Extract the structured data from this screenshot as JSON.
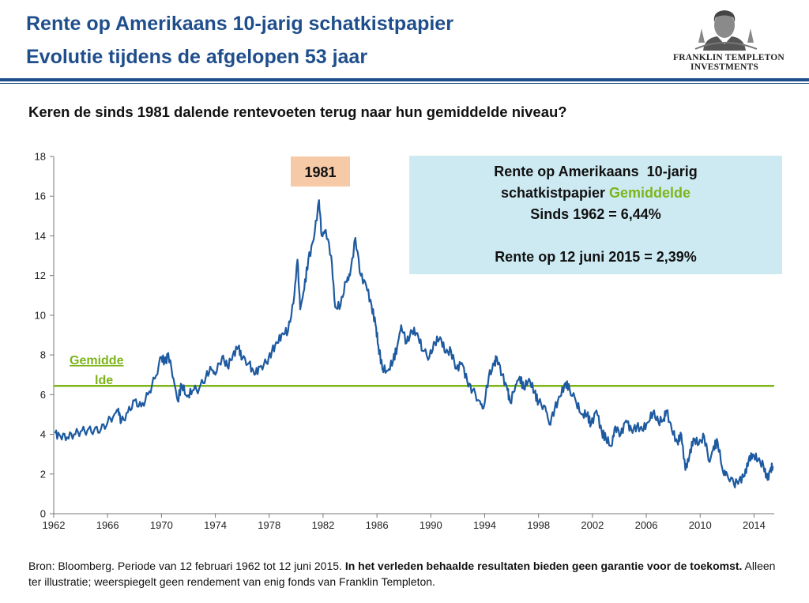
{
  "header": {
    "title_line1": "Rente op Amerikaans 10-jarig schatkistpapier",
    "title_line2": "Evolutie tijdens de afgelopen 53 jaar",
    "logo_line1": "FRANKLIN TEMPLETON",
    "logo_line2": "INVESTMENTS"
  },
  "subtitle": "Keren de sinds 1981 dalende rentevoeten terug naar hun gemiddelde niveau?",
  "colors": {
    "brand": "#1f4e8c",
    "series": "#1e5aa0",
    "average": "#7cb518",
    "infobox": "#cdeaf3",
    "label1981": "#f6c9a7"
  },
  "chart_data": {
    "type": "line",
    "xlim": [
      1962,
      2015.5
    ],
    "ylim": [
      0,
      18
    ],
    "x_ticks": [
      "1962",
      "1966",
      "1970",
      "1974",
      "1978",
      "1982",
      "1986",
      "1990",
      "1994",
      "1998",
      "2002",
      "2006",
      "2010",
      "2014"
    ],
    "y_ticks": [
      "0",
      "2",
      "4",
      "6",
      "8",
      "10",
      "12",
      "14",
      "16",
      "18"
    ],
    "average_value": 6.44,
    "average_label_line1": "Gemidde",
    "average_label_line2": "lde",
    "peak_label": "1981",
    "infobox": {
      "line1": "Rente op Amerikaans  10-jarig",
      "line2a": "schatkistpapier ",
      "line2b": "Gemiddelde",
      "line3": "Sinds 1962 = 6,44%",
      "line4": "Rente op 12 juni 2015 = 2,39%"
    },
    "series": [
      {
        "points": [
          [
            1962.1,
            4.05
          ],
          [
            1962.5,
            3.9
          ],
          [
            1963.0,
            3.85
          ],
          [
            1963.5,
            4.0
          ],
          [
            1964.0,
            4.15
          ],
          [
            1964.5,
            4.2
          ],
          [
            1965.0,
            4.2
          ],
          [
            1965.5,
            4.25
          ],
          [
            1966.0,
            4.6
          ],
          [
            1966.5,
            5.0
          ],
          [
            1966.8,
            5.3
          ],
          [
            1967.0,
            4.6
          ],
          [
            1967.5,
            5.1
          ],
          [
            1968.0,
            5.7
          ],
          [
            1968.5,
            5.4
          ],
          [
            1969.0,
            6.0
          ],
          [
            1969.5,
            6.8
          ],
          [
            1970.0,
            7.9
          ],
          [
            1970.3,
            7.6
          ],
          [
            1970.5,
            8.1
          ],
          [
            1970.9,
            6.8
          ],
          [
            1971.2,
            5.7
          ],
          [
            1971.5,
            6.5
          ],
          [
            1971.9,
            5.9
          ],
          [
            1972.3,
            6.2
          ],
          [
            1972.8,
            6.3
          ],
          [
            1973.3,
            6.9
          ],
          [
            1973.7,
            7.3
          ],
          [
            1974.0,
            7.0
          ],
          [
            1974.5,
            7.9
          ],
          [
            1974.9,
            7.4
          ],
          [
            1975.3,
            8.0
          ],
          [
            1975.7,
            8.4
          ],
          [
            1976.0,
            7.8
          ],
          [
            1976.5,
            7.6
          ],
          [
            1976.9,
            7.0
          ],
          [
            1977.3,
            7.4
          ],
          [
            1977.8,
            7.6
          ],
          [
            1978.2,
            8.2
          ],
          [
            1978.6,
            8.6
          ],
          [
            1979.0,
            9.1
          ],
          [
            1979.4,
            9.2
          ],
          [
            1979.8,
            10.6
          ],
          [
            1980.1,
            12.8
          ],
          [
            1980.3,
            10.3
          ],
          [
            1980.6,
            11.3
          ],
          [
            1980.9,
            12.8
          ],
          [
            1981.3,
            13.8
          ],
          [
            1981.7,
            15.8
          ],
          [
            1981.9,
            14.0
          ],
          [
            1982.2,
            14.3
          ],
          [
            1982.6,
            13.0
          ],
          [
            1982.9,
            10.4
          ],
          [
            1983.3,
            10.5
          ],
          [
            1983.7,
            11.7
          ],
          [
            1984.0,
            12.0
          ],
          [
            1984.4,
            13.9
          ],
          [
            1984.8,
            12.0
          ],
          [
            1985.2,
            11.5
          ],
          [
            1985.6,
            10.5
          ],
          [
            1985.9,
            9.5
          ],
          [
            1986.1,
            8.5
          ],
          [
            1986.4,
            7.3
          ],
          [
            1986.8,
            7.2
          ],
          [
            1987.2,
            7.7
          ],
          [
            1987.5,
            8.4
          ],
          [
            1987.8,
            9.5
          ],
          [
            1988.2,
            8.6
          ],
          [
            1988.6,
            9.2
          ],
          [
            1989.0,
            9.1
          ],
          [
            1989.4,
            8.2
          ],
          [
            1989.9,
            7.9
          ],
          [
            1990.3,
            8.6
          ],
          [
            1990.7,
            8.9
          ],
          [
            1991.1,
            8.1
          ],
          [
            1991.5,
            8.2
          ],
          [
            1991.9,
            7.3
          ],
          [
            1992.3,
            7.6
          ],
          [
            1992.7,
            6.7
          ],
          [
            1993.1,
            6.2
          ],
          [
            1993.6,
            5.7
          ],
          [
            1993.9,
            5.3
          ],
          [
            1994.3,
            6.9
          ],
          [
            1994.7,
            7.5
          ],
          [
            1994.9,
            7.9
          ],
          [
            1995.3,
            7.0
          ],
          [
            1995.7,
            6.2
          ],
          [
            1995.9,
            5.6
          ],
          [
            1996.3,
            6.5
          ],
          [
            1996.6,
            6.9
          ],
          [
            1996.9,
            6.3
          ],
          [
            1997.3,
            6.8
          ],
          [
            1997.7,
            6.1
          ],
          [
            1998.0,
            5.6
          ],
          [
            1998.5,
            5.4
          ],
          [
            1998.8,
            4.5
          ],
          [
            1999.2,
            5.3
          ],
          [
            1999.6,
            5.9
          ],
          [
            2000.0,
            6.6
          ],
          [
            2000.3,
            6.3
          ],
          [
            2000.8,
            5.6
          ],
          [
            2001.2,
            5.0
          ],
          [
            2001.6,
            5.0
          ],
          [
            2001.9,
            4.5
          ],
          [
            2002.3,
            5.2
          ],
          [
            2002.7,
            4.1
          ],
          [
            2003.0,
            3.8
          ],
          [
            2003.4,
            3.4
          ],
          [
            2003.7,
            4.4
          ],
          [
            2004.1,
            4.0
          ],
          [
            2004.5,
            4.7
          ],
          [
            2004.9,
            4.2
          ],
          [
            2005.3,
            4.4
          ],
          [
            2005.7,
            4.2
          ],
          [
            2006.1,
            4.6
          ],
          [
            2006.5,
            5.1
          ],
          [
            2006.9,
            4.6
          ],
          [
            2007.3,
            4.8
          ],
          [
            2007.5,
            5.2
          ],
          [
            2007.9,
            4.2
          ],
          [
            2008.3,
            3.6
          ],
          [
            2008.6,
            4.0
          ],
          [
            2008.9,
            2.2
          ],
          [
            2009.2,
            2.9
          ],
          [
            2009.5,
            3.8
          ],
          [
            2009.9,
            3.5
          ],
          [
            2010.3,
            3.9
          ],
          [
            2010.7,
            2.6
          ],
          [
            2011.0,
            3.4
          ],
          [
            2011.3,
            3.6
          ],
          [
            2011.7,
            2.1
          ],
          [
            2012.0,
            2.0
          ],
          [
            2012.5,
            1.5
          ],
          [
            2012.9,
            1.7
          ],
          [
            2013.3,
            1.9
          ],
          [
            2013.6,
            2.7
          ],
          [
            2013.9,
            3.0
          ],
          [
            2014.3,
            2.7
          ],
          [
            2014.7,
            2.4
          ],
          [
            2015.0,
            1.7
          ],
          [
            2015.2,
            2.2
          ],
          [
            2015.4,
            2.39
          ]
        ]
      }
    ]
  },
  "source": {
    "part1": "Bron: Bloomberg.  Periode van 12 februari 1962 tot 12 juni 2015. ",
    "part2_bold": "In het verleden behaalde resultaten bieden geen garantie voor de toekomst.",
    "part3": "  Alleen ter illustratie; weerspiegelt geen rendement van enig fonds van Franklin Templeton."
  }
}
